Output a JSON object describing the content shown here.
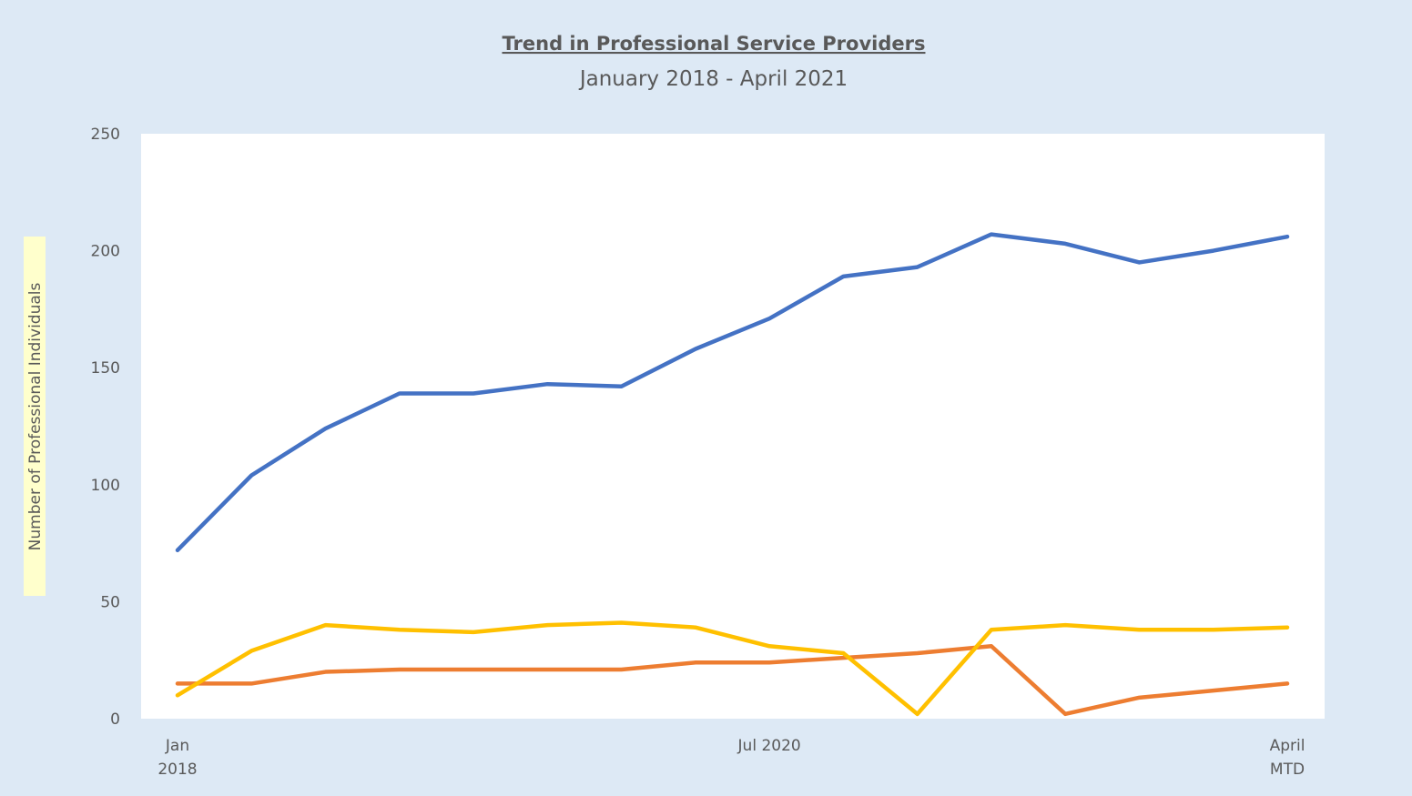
{
  "chart_data": {
    "type": "line",
    "title": "Trend in Professional Service Providers",
    "subtitle": "January 2018 - April 2021",
    "y_label": "Number of Professional Individuals",
    "categories": [
      "Jan\n2018",
      null,
      null,
      null,
      null,
      null,
      null,
      null,
      "Jul 2020",
      null,
      null,
      null,
      null,
      null,
      null,
      "April\nMTD"
    ],
    "series": [
      {
        "color": "#4472c4",
        "values": [
          72,
          104,
          124,
          139,
          139,
          143,
          142,
          158,
          171,
          189,
          193,
          207,
          203,
          195,
          200,
          206
        ]
      },
      {
        "color": "#ed7d31",
        "values": [
          15,
          15,
          20,
          21,
          21,
          21,
          21,
          24,
          24,
          26,
          28,
          31,
          2,
          9,
          12,
          15
        ]
      },
      {
        "color": "#ffc000",
        "values": [
          10,
          29,
          40,
          38,
          37,
          40,
          41,
          39,
          31,
          28,
          2,
          38,
          40,
          38,
          38,
          39
        ]
      }
    ],
    "ylim": [
      0,
      250
    ],
    "yticks": [
      0,
      50,
      100,
      150,
      200,
      250
    ],
    "grid": false
  }
}
